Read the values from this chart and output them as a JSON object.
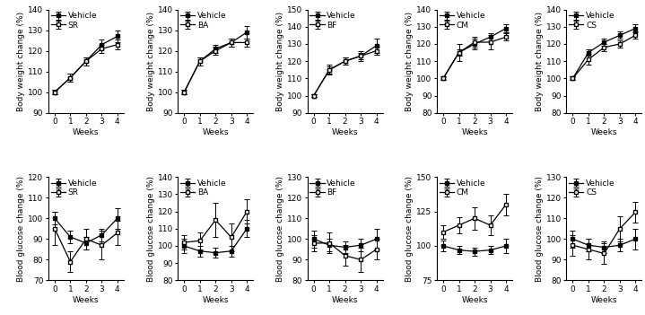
{
  "weeks": [
    0,
    1,
    2,
    3,
    4
  ],
  "bw": {
    "SR": {
      "vehicle_mean": [
        100,
        107,
        115,
        123,
        127
      ],
      "vehicle_err": [
        1,
        2,
        2,
        2.5,
        3
      ],
      "strain_mean": [
        100,
        107,
        115,
        121,
        123
      ],
      "strain_err": [
        1,
        2,
        2,
        2,
        2.5
      ],
      "ylim": [
        90,
        140
      ],
      "yticks": [
        90,
        100,
        110,
        120,
        130,
        140
      ]
    },
    "BA": {
      "vehicle_mean": [
        100,
        115,
        121,
        124,
        129
      ],
      "vehicle_err": [
        1,
        2,
        2,
        2,
        3
      ],
      "strain_mean": [
        100,
        115,
        120,
        124,
        124
      ],
      "strain_err": [
        1,
        2,
        2,
        2,
        2
      ],
      "ylim": [
        90,
        140
      ],
      "yticks": [
        90,
        100,
        110,
        120,
        130,
        140
      ]
    },
    "BF": {
      "vehicle_mean": [
        100,
        115,
        120,
        123,
        129
      ],
      "vehicle_err": [
        1,
        3,
        2,
        3,
        4
      ],
      "strain_mean": [
        100,
        115,
        120,
        123,
        126
      ],
      "strain_err": [
        1,
        2,
        2,
        2,
        2.5
      ],
      "ylim": [
        90,
        150
      ],
      "yticks": [
        90,
        100,
        110,
        120,
        130,
        140,
        150
      ]
    },
    "CM": {
      "vehicle_mean": [
        100,
        115,
        120,
        124,
        129
      ],
      "vehicle_err": [
        1,
        2,
        3,
        2,
        2.5
      ],
      "strain_mean": [
        100,
        115,
        121,
        121,
        124
      ],
      "strain_err": [
        1,
        5,
        3,
        4,
        2
      ],
      "ylim": [
        80,
        140
      ],
      "yticks": [
        80,
        90,
        100,
        110,
        120,
        130,
        140
      ]
    },
    "CS": {
      "vehicle_mean": [
        100,
        115,
        121,
        125,
        129
      ],
      "vehicle_err": [
        1,
        2,
        2,
        2,
        2.5
      ],
      "strain_mean": [
        100,
        111,
        118,
        120,
        125
      ],
      "strain_err": [
        1,
        3,
        2,
        2,
        2
      ],
      "ylim": [
        80,
        140
      ],
      "yticks": [
        80,
        90,
        100,
        110,
        120,
        130,
        140
      ]
    }
  },
  "bg": {
    "SR": {
      "vehicle_mean": [
        100,
        91,
        88,
        92,
        100
      ],
      "vehicle_err": [
        3,
        3,
        3,
        3,
        5
      ],
      "strain_mean": [
        95,
        79,
        90,
        87,
        93
      ],
      "strain_err": [
        8,
        5,
        5,
        7,
        6
      ],
      "ylim": [
        70,
        120
      ],
      "yticks": [
        70,
        80,
        90,
        100,
        110,
        120
      ]
    },
    "BA": {
      "vehicle_mean": [
        100,
        97,
        96,
        97,
        110
      ],
      "vehicle_err": [
        4,
        3,
        3,
        3,
        5
      ],
      "strain_mean": [
        102,
        103,
        115,
        105,
        120
      ],
      "strain_err": [
        4,
        5,
        10,
        8,
        7
      ],
      "ylim": [
        80,
        140
      ],
      "yticks": [
        80,
        90,
        100,
        110,
        120,
        130,
        140
      ]
    },
    "BF": {
      "vehicle_mean": [
        100,
        97,
        96,
        97,
        100
      ],
      "vehicle_err": [
        4,
        3,
        3,
        3,
        5
      ],
      "strain_mean": [
        98,
        98,
        92,
        90,
        95
      ],
      "strain_err": [
        4,
        5,
        5,
        6,
        5
      ],
      "ylim": [
        80,
        130
      ],
      "yticks": [
        80,
        90,
        100,
        110,
        120,
        130
      ]
    },
    "CM": {
      "vehicle_mean": [
        100,
        97,
        96,
        97,
        100
      ],
      "vehicle_err": [
        4,
        3,
        3,
        3,
        5
      ],
      "strain_mean": [
        110,
        115,
        120,
        115,
        130
      ],
      "strain_err": [
        5,
        6,
        8,
        7,
        8
      ],
      "ylim": [
        75,
        150
      ],
      "yticks": [
        75,
        100,
        125,
        150
      ]
    },
    "CS": {
      "vehicle_mean": [
        100,
        97,
        96,
        97,
        100
      ],
      "vehicle_err": [
        4,
        3,
        3,
        3,
        5
      ],
      "strain_mean": [
        97,
        95,
        93,
        105,
        113
      ],
      "strain_err": [
        5,
        5,
        5,
        6,
        5
      ],
      "ylim": [
        80,
        130
      ],
      "yticks": [
        80,
        90,
        100,
        110,
        120,
        130
      ]
    }
  },
  "strains": [
    "SR",
    "BA",
    "BF",
    "CM",
    "CS"
  ],
  "fontsize": 6.5,
  "ylabel_bw": "Body weight change (%)",
  "ylabel_bg": "Blood glucose change (%)",
  "xlabel": "Weeks"
}
